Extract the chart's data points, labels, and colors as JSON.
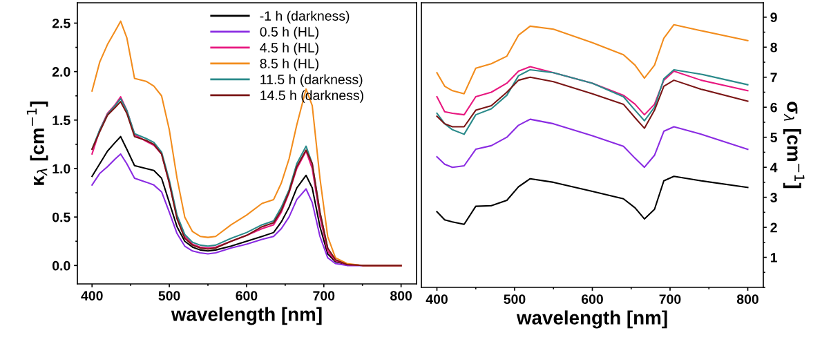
{
  "chart_data": [
    {
      "type": "line",
      "xlabel": "wavelength [nm]",
      "ylabel": "κ$_{λ}$ [cm$^{−1}$]",
      "legend": "top",
      "xlim": [
        381,
        820
      ],
      "ylim": [
        -0.19,
        2.71
      ],
      "xticks": [
        400,
        500,
        600,
        700,
        800
      ],
      "yticks": [
        {
          "value": 0,
          "label": "0.0"
        },
        {
          "value": 0.5,
          "label": "0.5"
        },
        {
          "value": 1,
          "label": "1.0"
        },
        {
          "value": 1.5,
          "label": "1.5"
        },
        {
          "value": 2,
          "label": "2.0"
        },
        {
          "value": 2.5,
          "label": "2.5"
        }
      ],
      "x": [
        400,
        410,
        420,
        430,
        437,
        445,
        455,
        470,
        480,
        490,
        500,
        510,
        520,
        530,
        540,
        550,
        560,
        580,
        600,
        620,
        635,
        645,
        655,
        665,
        677,
        685,
        695,
        705,
        715,
        730,
        750,
        800
      ],
      "series": [
        {
          "name": "-1 h (darkness)",
          "color": "#000000",
          "values": [
            0.92,
            1.05,
            1.18,
            1.27,
            1.33,
            1.2,
            1.03,
            1.0,
            0.98,
            0.9,
            0.65,
            0.4,
            0.25,
            0.19,
            0.16,
            0.15,
            0.16,
            0.2,
            0.25,
            0.3,
            0.34,
            0.45,
            0.6,
            0.8,
            0.93,
            0.8,
            0.4,
            0.12,
            0.04,
            0.01,
            0.0,
            0.0
          ]
        },
        {
          "name": "0.5 h (HL)",
          "color": "#8a2be2",
          "values": [
            0.83,
            0.95,
            1.02,
            1.1,
            1.15,
            1.05,
            0.9,
            0.86,
            0.83,
            0.76,
            0.55,
            0.33,
            0.2,
            0.15,
            0.13,
            0.12,
            0.13,
            0.18,
            0.22,
            0.27,
            0.3,
            0.38,
            0.5,
            0.68,
            0.79,
            0.65,
            0.3,
            0.08,
            0.02,
            0.0,
            0.0,
            0.0
          ]
        },
        {
          "name": "4.5 h (HL)",
          "color": "#e8177f",
          "values": [
            1.15,
            1.4,
            1.57,
            1.66,
            1.74,
            1.6,
            1.35,
            1.28,
            1.24,
            1.15,
            0.85,
            0.5,
            0.3,
            0.22,
            0.19,
            0.18,
            0.19,
            0.25,
            0.31,
            0.38,
            0.42,
            0.55,
            0.75,
            1.0,
            1.18,
            1.0,
            0.5,
            0.15,
            0.05,
            0.01,
            0.0,
            0.0
          ]
        },
        {
          "name": "8.5 h (HL)",
          "color": "#f28c1c",
          "values": [
            1.8,
            2.1,
            2.28,
            2.42,
            2.52,
            2.35,
            1.93,
            1.9,
            1.85,
            1.75,
            1.4,
            0.9,
            0.5,
            0.35,
            0.3,
            0.29,
            0.3,
            0.42,
            0.52,
            0.64,
            0.68,
            0.85,
            1.1,
            1.45,
            1.82,
            1.65,
            0.9,
            0.3,
            0.08,
            0.02,
            0.0,
            0.0
          ]
        },
        {
          "name": "11.5 h (darkness)",
          "color": "#2a8a8a",
          "values": [
            1.2,
            1.4,
            1.56,
            1.65,
            1.72,
            1.6,
            1.36,
            1.31,
            1.27,
            1.17,
            0.88,
            0.52,
            0.32,
            0.24,
            0.21,
            0.2,
            0.21,
            0.28,
            0.34,
            0.42,
            0.46,
            0.6,
            0.78,
            1.05,
            1.23,
            1.05,
            0.55,
            0.18,
            null,
            null,
            null,
            null
          ]
        },
        {
          "name": "14.5 h (darkness)",
          "color": "#7a1515",
          "values": [
            1.2,
            1.38,
            1.55,
            1.63,
            1.69,
            1.57,
            1.33,
            1.29,
            1.25,
            1.15,
            0.85,
            0.48,
            0.28,
            0.21,
            0.18,
            0.17,
            0.18,
            0.25,
            0.31,
            0.4,
            0.44,
            0.57,
            0.76,
            1.02,
            1.19,
            1.05,
            0.55,
            0.18,
            0.06,
            0.01,
            0.0,
            0.0
          ]
        }
      ]
    },
    {
      "type": "line",
      "xlabel": "wavelength [nm]",
      "y2label": "σ$_{λ}$ [cm$^{−1}$]",
      "xlim": [
        380,
        820
      ],
      "y2lim": [
        0,
        9.48
      ],
      "xticks": [
        400,
        500,
        600,
        700,
        800
      ],
      "y2ticks": [
        1,
        2,
        3,
        4,
        5,
        6,
        7,
        8,
        9
      ],
      "x": [
        400,
        410,
        420,
        435,
        450,
        470,
        490,
        505,
        520,
        550,
        600,
        640,
        655,
        667,
        680,
        692,
        705,
        740,
        800
      ],
      "series": [
        {
          "color": "#000000",
          "axis": "y2",
          "values": [
            2.52,
            2.25,
            2.18,
            2.1,
            2.7,
            2.72,
            2.9,
            3.35,
            3.62,
            3.5,
            3.2,
            2.95,
            2.65,
            2.28,
            2.6,
            3.55,
            3.7,
            3.55,
            3.33
          ]
        },
        {
          "color": "#8a2be2",
          "axis": "y2",
          "values": [
            4.35,
            4.1,
            4.0,
            4.05,
            4.6,
            4.72,
            5.0,
            5.4,
            5.6,
            5.45,
            5.05,
            4.7,
            4.3,
            4.0,
            4.4,
            5.2,
            5.35,
            5.1,
            4.6
          ]
        },
        {
          "color": "#e8177f",
          "axis": "y2",
          "values": [
            6.35,
            5.85,
            5.8,
            5.75,
            6.35,
            6.5,
            6.8,
            7.2,
            7.35,
            7.15,
            6.8,
            6.4,
            6.1,
            5.75,
            6.1,
            6.9,
            7.2,
            6.9,
            6.55
          ]
        },
        {
          "color": "#f28c1c",
          "axis": "y2",
          "values": [
            7.15,
            6.7,
            6.55,
            6.45,
            7.3,
            7.45,
            7.7,
            8.4,
            8.7,
            8.6,
            8.15,
            7.75,
            7.4,
            6.97,
            7.4,
            8.3,
            8.75,
            8.55,
            8.22
          ]
        },
        {
          "color": "#2a8a8a",
          "axis": "y2",
          "values": [
            5.8,
            5.45,
            5.25,
            5.1,
            5.75,
            5.95,
            6.4,
            7.05,
            7.25,
            7.15,
            6.8,
            6.35,
            5.9,
            5.55,
            6.0,
            6.95,
            7.25,
            7.1,
            6.75
          ]
        },
        {
          "color": "#7a1515",
          "axis": "y2",
          "values": [
            5.7,
            5.45,
            5.35,
            5.35,
            5.9,
            6.05,
            6.5,
            6.9,
            7.0,
            6.85,
            6.45,
            6.1,
            5.65,
            5.3,
            5.9,
            6.7,
            6.9,
            6.6,
            6.2
          ]
        }
      ]
    }
  ]
}
